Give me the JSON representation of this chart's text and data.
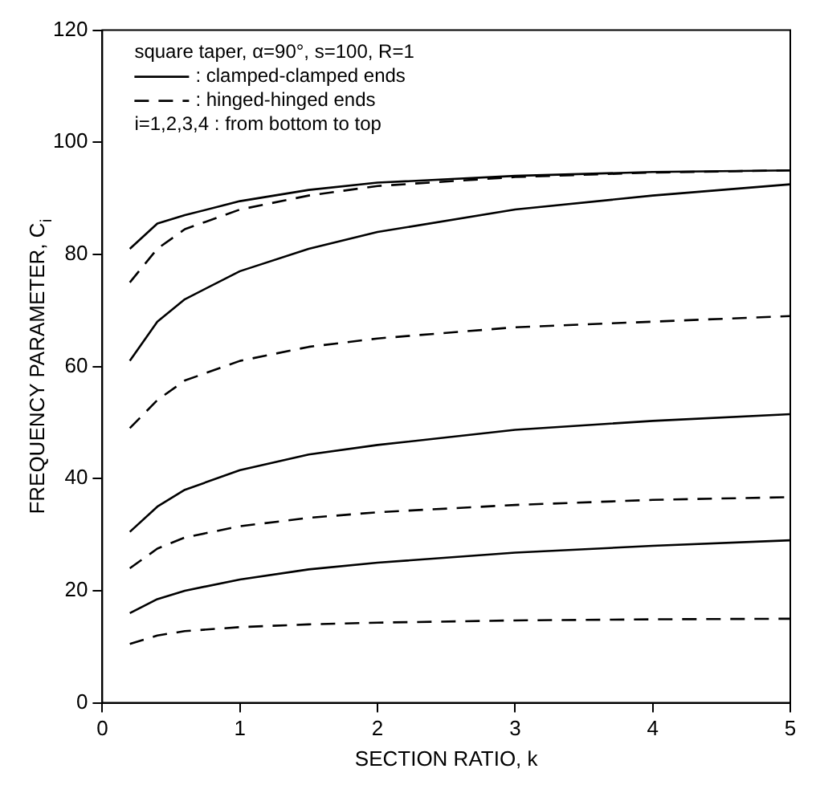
{
  "chart_data": {
    "type": "line",
    "xlabel": "SECTION RATIO, k",
    "ylabel": "FREQUENCY PARAMETER, C$_{i}$",
    "annotations": [
      "square taper, α=90°, s=100, R=1",
      "i=1,2,3,4 : from bottom to top"
    ],
    "legend": "top left",
    "grid": false,
    "marker": "none",
    "x": [
      0.2,
      0.4,
      0.6,
      1,
      1.5,
      2,
      3,
      4,
      5
    ],
    "xlim": [
      0,
      5
    ],
    "xticks": [
      0,
      1,
      2,
      3,
      4,
      5
    ],
    "ylim": [
      0,
      120
    ],
    "yticks": [
      0,
      20,
      40,
      60,
      80,
      100,
      120
    ],
    "series": [
      {
        "name": ": clamped-clamped ends",
        "color": "#000000",
        "line_style": "solid",
        "values": [
          16,
          18.5,
          20,
          22,
          23.8,
          25,
          26.8,
          28,
          29
        ]
      },
      {
        "name": ": hinged-hinged ends",
        "color": "#000000",
        "line_style": "dashed",
        "values": [
          10.5,
          12,
          12.8,
          13.5,
          14,
          14.3,
          14.7,
          14.9,
          15
        ]
      },
      {
        "color": "#000000",
        "line_style": "solid",
        "values": [
          30.5,
          35,
          38,
          41.5,
          44.3,
          46,
          48.7,
          50.3,
          51.5
        ]
      },
      {
        "color": "#000000",
        "line_style": "dashed",
        "values": [
          24,
          27.5,
          29.5,
          31.5,
          33,
          34,
          35.3,
          36.2,
          36.7
        ]
      },
      {
        "color": "#000000",
        "line_style": "solid",
        "values": [
          61,
          68,
          72,
          77,
          81,
          84,
          88,
          90.5,
          92.5
        ]
      },
      {
        "color": "#000000",
        "line_style": "dashed",
        "values": [
          49,
          54,
          57.5,
          61,
          63.5,
          65,
          67,
          68,
          69
        ]
      },
      {
        "color": "#000000",
        "line_style": "solid",
        "values": [
          81,
          85.5,
          87,
          89.5,
          91.5,
          92.8,
          94,
          94.7,
          95
        ]
      },
      {
        "color": "#000000",
        "line_style": "dashed",
        "values": [
          75,
          81,
          84.5,
          88,
          90.5,
          92.2,
          93.8,
          94.6,
          95
        ]
      }
    ]
  }
}
